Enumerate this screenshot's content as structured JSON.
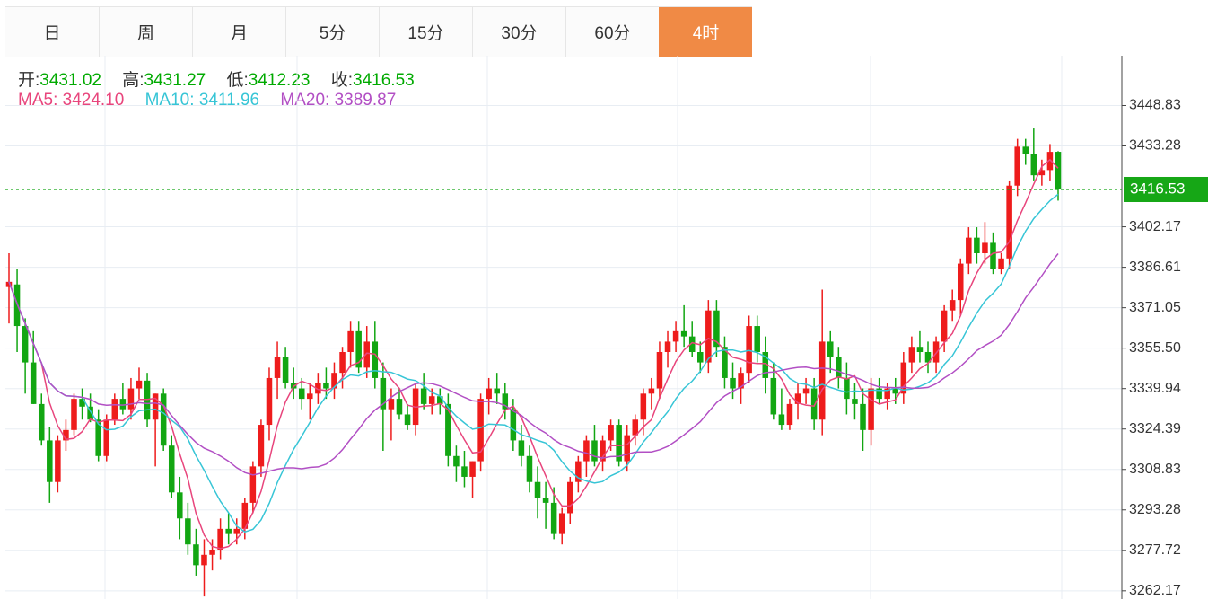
{
  "tabs": [
    {
      "label": "日",
      "active": false
    },
    {
      "label": "周",
      "active": false
    },
    {
      "label": "月",
      "active": false
    },
    {
      "label": "5分",
      "active": false
    },
    {
      "label": "15分",
      "active": false
    },
    {
      "label": "30分",
      "active": false
    },
    {
      "label": "60分",
      "active": false
    },
    {
      "label": "4时",
      "active": true
    }
  ],
  "ohlc_info": {
    "open_label": "开:",
    "open": "3431.02",
    "high_label": "高:",
    "high": "3431.27",
    "low_label": "低:",
    "low": "3412.23",
    "close_label": "收:",
    "close": "3416.53"
  },
  "ma_info": {
    "ma5_label": "MA5:",
    "ma5": "3424.10",
    "ma10_label": "MA10:",
    "ma10": "3411.96",
    "ma20_label": "MA20:",
    "ma20": "3389.87"
  },
  "colors": {
    "up": "#ee1c1c",
    "down": "#12a612",
    "ma5": "#e8457c",
    "ma10": "#37c5d6",
    "ma20": "#b24fc4",
    "active_tab": "#f08a45",
    "price_tag": "#16a716"
  },
  "chart_data": {
    "type": "candlestick",
    "y_tick_labels": [
      "3448.83",
      "3433.28",
      "3416.53",
      "3402.17",
      "3386.61",
      "3371.05",
      "3355.50",
      "3339.94",
      "3324.39",
      "3308.83",
      "3293.28",
      "3277.72",
      "3262.17"
    ],
    "y_ticks": [
      3448.83,
      3433.28,
      3402.17,
      3386.61,
      3371.05,
      3355.5,
      3339.94,
      3324.39,
      3308.83,
      3293.28,
      3277.72,
      3262.17
    ],
    "ylim": [
      3259.0,
      3468.0
    ],
    "current_price": 3416.53,
    "current_price_label": "3416.53",
    "candles": [
      [
        3379,
        3392,
        3365,
        3381
      ],
      [
        3380,
        3386,
        3354,
        3364
      ],
      [
        3364,
        3367,
        3338,
        3350
      ],
      [
        3350,
        3362,
        3334,
        3334
      ],
      [
        3334,
        3338,
        3318,
        3320
      ],
      [
        3320,
        3325,
        3296,
        3304
      ],
      [
        3304,
        3322,
        3300,
        3320
      ],
      [
        3320,
        3328,
        3316,
        3324
      ],
      [
        3324,
        3338,
        3322,
        3336
      ],
      [
        3336,
        3340,
        3328,
        3333
      ],
      [
        3333,
        3338,
        3327,
        3328
      ],
      [
        3328,
        3332,
        3312,
        3314
      ],
      [
        3314,
        3330,
        3312,
        3328
      ],
      [
        3328,
        3338,
        3326,
        3336
      ],
      [
        3336,
        3342,
        3330,
        3332
      ],
      [
        3332,
        3344,
        3328,
        3340
      ],
      [
        3340,
        3348,
        3336,
        3343
      ],
      [
        3343,
        3346,
        3325,
        3328
      ],
      [
        3328,
        3338,
        3310,
        3338
      ],
      [
        3338,
        3340,
        3316,
        3318
      ],
      [
        3318,
        3322,
        3298,
        3300
      ],
      [
        3300,
        3306,
        3282,
        3290
      ],
      [
        3290,
        3296,
        3276,
        3280
      ],
      [
        3280,
        3286,
        3268,
        3272
      ],
      [
        3272,
        3282,
        3260,
        3276
      ],
      [
        3276,
        3282,
        3270,
        3278
      ],
      [
        3278,
        3290,
        3274,
        3286
      ],
      [
        3286,
        3292,
        3280,
        3284
      ],
      [
        3284,
        3290,
        3280,
        3286
      ],
      [
        3286,
        3298,
        3282,
        3296
      ],
      [
        3296,
        3312,
        3292,
        3310
      ],
      [
        3310,
        3328,
        3306,
        3326
      ],
      [
        3326,
        3348,
        3320,
        3344
      ],
      [
        3344,
        3358,
        3336,
        3352
      ],
      [
        3352,
        3356,
        3340,
        3342
      ],
      [
        3342,
        3348,
        3336,
        3340
      ],
      [
        3340,
        3344,
        3332,
        3336
      ],
      [
        3336,
        3342,
        3328,
        3338
      ],
      [
        3338,
        3346,
        3334,
        3342
      ],
      [
        3342,
        3348,
        3336,
        3340
      ],
      [
        3340,
        3350,
        3336,
        3346
      ],
      [
        3346,
        3356,
        3340,
        3354
      ],
      [
        3354,
        3366,
        3348,
        3362
      ],
      [
        3362,
        3366,
        3346,
        3348
      ],
      [
        3348,
        3364,
        3344,
        3358
      ],
      [
        3358,
        3366,
        3340,
        3344
      ],
      [
        3344,
        3350,
        3316,
        3332
      ],
      [
        3332,
        3340,
        3320,
        3336
      ],
      [
        3336,
        3340,
        3328,
        3330
      ],
      [
        3330,
        3334,
        3324,
        3326
      ],
      [
        3326,
        3342,
        3322,
        3340
      ],
      [
        3340,
        3346,
        3332,
        3334
      ],
      [
        3334,
        3340,
        3330,
        3337
      ],
      [
        3337,
        3340,
        3330,
        3334
      ],
      [
        3334,
        3338,
        3310,
        3314
      ],
      [
        3314,
        3318,
        3304,
        3310
      ],
      [
        3310,
        3316,
        3302,
        3306
      ],
      [
        3306,
        3312,
        3298,
        3312
      ],
      [
        3312,
        3338,
        3308,
        3336
      ],
      [
        3336,
        3344,
        3330,
        3340
      ],
      [
        3340,
        3346,
        3334,
        3338
      ],
      [
        3338,
        3342,
        3328,
        3332
      ],
      [
        3332,
        3336,
        3316,
        3320
      ],
      [
        3320,
        3326,
        3310,
        3314
      ],
      [
        3314,
        3318,
        3300,
        3304
      ],
      [
        3304,
        3310,
        3290,
        3298
      ],
      [
        3298,
        3304,
        3286,
        3296
      ],
      [
        3296,
        3302,
        3282,
        3284
      ],
      [
        3284,
        3294,
        3280,
        3292
      ],
      [
        3292,
        3306,
        3288,
        3304
      ],
      [
        3304,
        3314,
        3300,
        3312
      ],
      [
        3312,
        3322,
        3306,
        3320
      ],
      [
        3320,
        3326,
        3310,
        3312
      ],
      [
        3312,
        3322,
        3308,
        3320
      ],
      [
        3320,
        3328,
        3316,
        3326
      ],
      [
        3326,
        3328,
        3310,
        3312
      ],
      [
        3312,
        3326,
        3308,
        3322
      ],
      [
        3322,
        3330,
        3318,
        3328
      ],
      [
        3328,
        3340,
        3322,
        3338
      ],
      [
        3338,
        3344,
        3332,
        3340
      ],
      [
        3340,
        3358,
        3336,
        3354
      ],
      [
        3354,
        3362,
        3348,
        3358
      ],
      [
        3358,
        3366,
        3354,
        3362
      ],
      [
        3362,
        3372,
        3356,
        3360
      ],
      [
        3360,
        3366,
        3352,
        3354
      ],
      [
        3354,
        3358,
        3346,
        3350
      ],
      [
        3350,
        3374,
        3346,
        3370
      ],
      [
        3370,
        3374,
        3352,
        3356
      ],
      [
        3356,
        3360,
        3340,
        3344
      ],
      [
        3344,
        3350,
        3336,
        3340
      ],
      [
        3340,
        3348,
        3334,
        3346
      ],
      [
        3346,
        3368,
        3342,
        3364
      ],
      [
        3364,
        3368,
        3350,
        3354
      ],
      [
        3354,
        3360,
        3338,
        3344
      ],
      [
        3344,
        3350,
        3328,
        3330
      ],
      [
        3330,
        3340,
        3324,
        3326
      ],
      [
        3326,
        3336,
        3324,
        3334
      ],
      [
        3334,
        3342,
        3328,
        3338
      ],
      [
        3338,
        3344,
        3334,
        3340
      ],
      [
        3340,
        3344,
        3324,
        3328
      ],
      [
        3328,
        3378,
        3322,
        3358
      ],
      [
        3358,
        3362,
        3346,
        3352
      ],
      [
        3352,
        3356,
        3340,
        3344
      ],
      [
        3344,
        3350,
        3330,
        3336
      ],
      [
        3336,
        3342,
        3328,
        3334
      ],
      [
        3334,
        3340,
        3316,
        3324
      ],
      [
        3324,
        3344,
        3318,
        3340
      ],
      [
        3340,
        3344,
        3334,
        3336
      ],
      [
        3336,
        3342,
        3332,
        3340
      ],
      [
        3340,
        3344,
        3334,
        3338
      ],
      [
        3338,
        3354,
        3334,
        3350
      ],
      [
        3350,
        3360,
        3346,
        3356
      ],
      [
        3356,
        3362,
        3350,
        3354
      ],
      [
        3354,
        3358,
        3346,
        3350
      ],
      [
        3350,
        3360,
        3346,
        3358
      ],
      [
        3358,
        3372,
        3354,
        3370
      ],
      [
        3370,
        3378,
        3366,
        3374
      ],
      [
        3374,
        3390,
        3368,
        3388
      ],
      [
        3388,
        3402,
        3384,
        3398
      ],
      [
        3398,
        3402,
        3388,
        3392
      ],
      [
        3392,
        3404,
        3388,
        3396
      ],
      [
        3396,
        3400,
        3384,
        3386
      ],
      [
        3386,
        3392,
        3384,
        3390
      ],
      [
        3390,
        3420,
        3386,
        3418
      ],
      [
        3418,
        3436,
        3414,
        3433
      ],
      [
        3433,
        3436,
        3426,
        3430
      ],
      [
        3430,
        3440,
        3420,
        3422
      ],
      [
        3422,
        3428,
        3418,
        3424
      ],
      [
        3424,
        3434,
        3420,
        3431
      ],
      [
        3431.02,
        3431.27,
        3412.23,
        3416.53
      ]
    ]
  }
}
